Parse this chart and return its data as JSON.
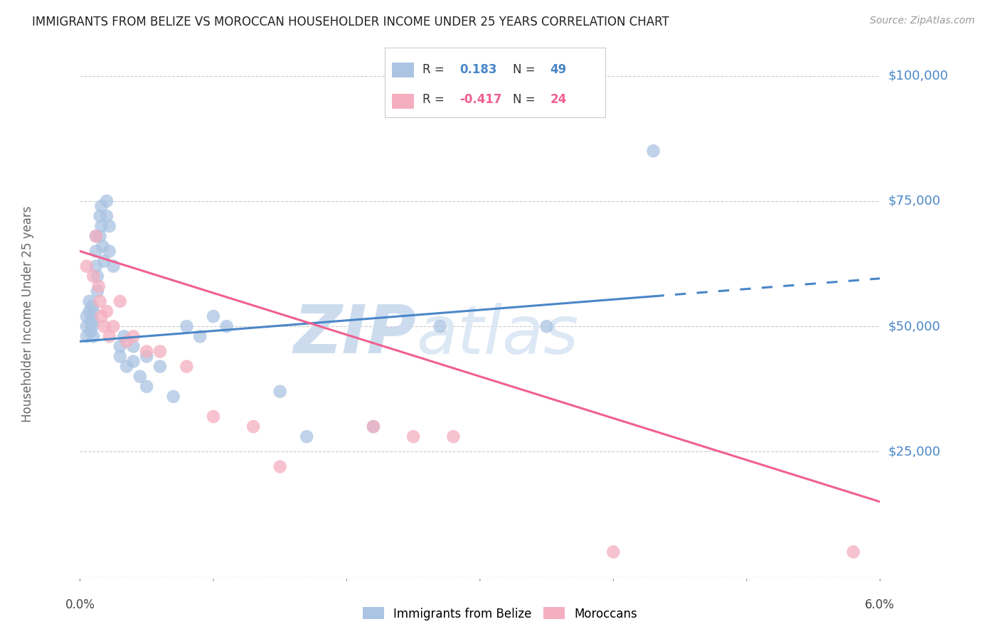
{
  "title": "IMMIGRANTS FROM BELIZE VS MOROCCAN HOUSEHOLDER INCOME UNDER 25 YEARS CORRELATION CHART",
  "source": "Source: ZipAtlas.com",
  "ylabel": "Householder Income Under 25 years",
  "y_ticks": [
    0,
    25000,
    50000,
    75000,
    100000
  ],
  "y_tick_labels": [
    "",
    "$25,000",
    "$50,000",
    "$75,000",
    "$100,000"
  ],
  "x_min": 0.0,
  "x_max": 0.06,
  "y_min": 0,
  "y_max": 105000,
  "belize_R": 0.183,
  "belize_N": 49,
  "moroccan_R": -0.417,
  "moroccan_N": 24,
  "belize_color": "#aac4e2",
  "moroccan_color": "#f5aec0",
  "belize_line_color": "#4a86c8",
  "moroccan_line_color": "#f06090",
  "right_label_color": "#4a86c8",
  "legend_label_belize": "Immigrants from Belize",
  "legend_label_moroccan": "Moroccans",
  "belize_x": [
    0.0005,
    0.0005,
    0.0005,
    0.0007,
    0.0007,
    0.0008,
    0.0008,
    0.0009,
    0.0009,
    0.001,
    0.001,
    0.001,
    0.0012,
    0.0012,
    0.0012,
    0.0013,
    0.0013,
    0.0015,
    0.0015,
    0.0016,
    0.0016,
    0.0017,
    0.0018,
    0.002,
    0.002,
    0.0022,
    0.0022,
    0.0025,
    0.003,
    0.003,
    0.0033,
    0.0035,
    0.004,
    0.004,
    0.0045,
    0.005,
    0.005,
    0.006,
    0.007,
    0.008,
    0.009,
    0.01,
    0.011,
    0.015,
    0.017,
    0.022,
    0.027,
    0.035,
    0.043
  ],
  "belize_y": [
    50000,
    52000,
    48000,
    55000,
    53000,
    51000,
    49000,
    54000,
    50000,
    53000,
    51000,
    48000,
    68000,
    65000,
    62000,
    60000,
    57000,
    72000,
    68000,
    74000,
    70000,
    66000,
    63000,
    75000,
    72000,
    70000,
    65000,
    62000,
    46000,
    44000,
    48000,
    42000,
    46000,
    43000,
    40000,
    44000,
    38000,
    42000,
    36000,
    50000,
    48000,
    52000,
    50000,
    37000,
    28000,
    30000,
    50000,
    50000,
    85000
  ],
  "moroccan_x": [
    0.0005,
    0.001,
    0.0012,
    0.0014,
    0.0015,
    0.0016,
    0.0018,
    0.002,
    0.0022,
    0.0025,
    0.003,
    0.0035,
    0.004,
    0.005,
    0.006,
    0.008,
    0.01,
    0.013,
    0.015,
    0.022,
    0.025,
    0.028,
    0.04,
    0.058
  ],
  "moroccan_y": [
    62000,
    60000,
    68000,
    58000,
    55000,
    52000,
    50000,
    53000,
    48000,
    50000,
    55000,
    47000,
    48000,
    45000,
    45000,
    42000,
    32000,
    30000,
    22000,
    30000,
    28000,
    28000,
    5000,
    5000
  ],
  "belize_line_x0": 0.0,
  "belize_line_y0": 47000,
  "belize_line_x1": 0.043,
  "belize_line_y1": 56000,
  "belize_line_dash_x0": 0.043,
  "belize_line_dash_x1": 0.06,
  "moroccan_line_x0": 0.0,
  "moroccan_line_y0": 65000,
  "moroccan_line_x1": 0.06,
  "moroccan_line_y1": 15000,
  "watermark_zip": "ZIP",
  "watermark_atlas": "atlas",
  "watermark_color": "#d5e5f5",
  "background_color": "#ffffff",
  "grid_color": "#cccccc"
}
